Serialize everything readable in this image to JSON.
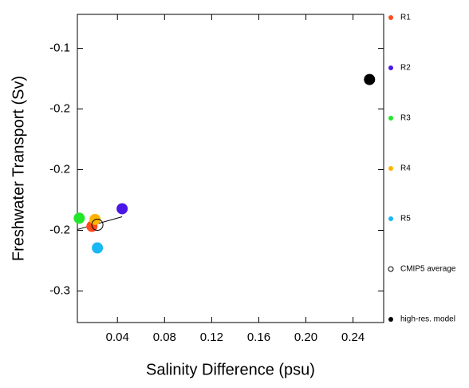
{
  "chart_data": {
    "type": "scatter",
    "x_label": "Salinity Difference (psu)",
    "y_label": "Freshwater Transport (Sv)",
    "xlim": [
      0.006,
      0.266
    ],
    "ylim": [
      -0.326,
      -0.072
    ],
    "xticks": [
      0.04,
      0.08,
      0.12,
      0.16,
      {
        "value": 0.2,
        "label": "0.20"
      },
      0.24
    ],
    "yticks": [
      -0.1,
      {
        "value": -0.15,
        "label": "-0.2"
      },
      -0.2,
      {
        "value": -0.25,
        "label": "-0.2"
      },
      -0.3
    ],
    "series": [
      {
        "name": "R1",
        "color": "#ff4a1a",
        "x": [
          0.0184
        ],
        "values": [
          -0.2467
        ]
      },
      {
        "name": "R2",
        "color": "#4a17e6",
        "x": [
          0.044
        ],
        "values": [
          -0.2322
        ]
      },
      {
        "name": "R3",
        "color": "#22e62a",
        "x": [
          0.0076
        ],
        "values": [
          -0.24
        ]
      },
      {
        "name": "R4",
        "color": "#ffb300",
        "x": [
          0.021
        ],
        "values": [
          -0.241
        ]
      },
      {
        "name": "R5",
        "color": "#18b8f5",
        "x": [
          0.023
        ],
        "values": [
          -0.2645
        ]
      },
      {
        "name": "CMIP5 average",
        "color": "#000000",
        "hollow": true,
        "x": [
          0.023
        ],
        "values": [
          -0.2454
        ]
      },
      {
        "name": "high-res. model",
        "color": "#000000",
        "x": [
          0.254
        ],
        "values": [
          -0.1257
        ]
      }
    ],
    "fit_line": {
      "x": [
        0.006,
        0.044
      ],
      "values": [
        -0.2493,
        -0.2388
      ]
    }
  }
}
